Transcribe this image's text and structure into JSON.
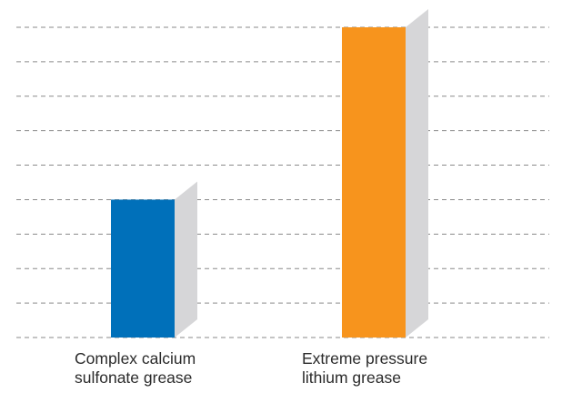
{
  "chart_data": {
    "type": "bar",
    "categories": [
      [
        "Complex calcium",
        "sulfonate grease"
      ],
      [
        "Extreme pressure",
        "lithium grease"
      ]
    ],
    "values": [
      4,
      9
    ],
    "ylim": [
      0,
      9
    ],
    "grid": true,
    "gridline_count": 10,
    "bar_colors": [
      "#0070ba",
      "#f7941d"
    ],
    "side_color": "#d6d6d8",
    "grid_color": "#8a8a8a",
    "style": "3d-bar"
  }
}
